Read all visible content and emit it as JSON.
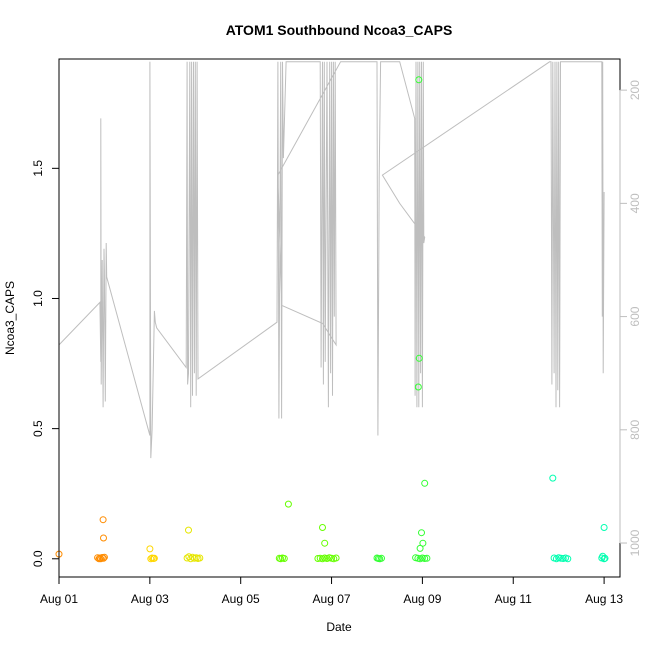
{
  "chart_data": {
    "type": "scatter",
    "title": "ATOM1 Southbound Ncoa3_CAPS",
    "xlabel": "Date",
    "ylabel": "Ncoa3_CAPS",
    "xlim": [
      0.0,
      12.35
    ],
    "ylim": [
      -0.07,
      1.92
    ],
    "x_ticks": [
      {
        "value": 0,
        "label": "Aug 01"
      },
      {
        "value": 2,
        "label": "Aug 03"
      },
      {
        "value": 4,
        "label": "Aug 05"
      },
      {
        "value": 6,
        "label": "Aug 07"
      },
      {
        "value": 8,
        "label": "Aug 09"
      },
      {
        "value": 10,
        "label": "Aug 11"
      },
      {
        "value": 12,
        "label": "Aug 13"
      }
    ],
    "y_ticks": [
      {
        "value": 0.0,
        "label": "0.0"
      },
      {
        "value": 0.5,
        "label": "0.5"
      },
      {
        "value": 1.0,
        "label": "1.0"
      },
      {
        "value": 1.5,
        "label": "1.5"
      }
    ],
    "secondary_axis": {
      "color": "#bebebe",
      "reversed": true,
      "ylim": [
        1060,
        145
      ],
      "ticks": [
        {
          "value": 200,
          "label": "200"
        },
        {
          "value": 400,
          "label": "400"
        },
        {
          "value": 600,
          "label": "600"
        },
        {
          "value": 800,
          "label": "800"
        },
        {
          "value": 1000,
          "label": "1000"
        }
      ]
    },
    "secondary_line": {
      "color": "#bebebe",
      "points": [
        [
          0.0,
          650
        ],
        [
          0.9,
          575
        ],
        [
          0.92,
          680
        ],
        [
          0.92,
          250
        ],
        [
          0.93,
          720
        ],
        [
          0.95,
          500
        ],
        [
          0.97,
          760
        ],
        [
          0.99,
          480
        ],
        [
          1.0,
          520
        ],
        [
          1.02,
          750
        ],
        [
          1.04,
          470
        ],
        [
          1.05,
          530
        ],
        [
          2.0,
          810
        ],
        [
          2.0,
          150
        ],
        [
          2.02,
          850
        ],
        [
          2.05,
          800
        ],
        [
          2.1,
          590
        ],
        [
          2.12,
          610
        ],
        [
          2.15,
          620
        ],
        [
          2.8,
          690
        ],
        [
          2.82,
          150
        ],
        [
          2.83,
          720
        ],
        [
          2.85,
          700
        ],
        [
          2.88,
          150
        ],
        [
          2.9,
          760
        ],
        [
          2.92,
          150
        ],
        [
          2.94,
          740
        ],
        [
          2.96,
          150
        ],
        [
          2.98,
          700
        ],
        [
          3.0,
          150
        ],
        [
          3.02,
          740
        ],
        [
          3.04,
          150
        ],
        [
          3.06,
          710
        ],
        [
          4.8,
          610
        ],
        [
          4.82,
          150
        ],
        [
          4.84,
          780
        ],
        [
          4.86,
          480
        ],
        [
          4.88,
          150
        ],
        [
          4.9,
          780
        ],
        [
          4.92,
          150
        ],
        [
          4.94,
          320
        ],
        [
          5.0,
          150
        ],
        [
          5.6,
          150
        ],
        [
          5.75,
          150
        ],
        [
          5.77,
          690
        ],
        [
          5.8,
          150
        ],
        [
          5.82,
          720
        ],
        [
          5.84,
          150
        ],
        [
          5.86,
          680
        ],
        [
          5.9,
          150
        ],
        [
          5.93,
          760
        ],
        [
          5.96,
          150
        ],
        [
          5.98,
          700
        ],
        [
          6.0,
          150
        ],
        [
          6.02,
          740
        ],
        [
          6.04,
          150
        ],
        [
          6.06,
          600
        ],
        [
          6.08,
          150
        ],
        [
          6.1,
          650
        ],
        [
          5.8,
          612
        ],
        [
          4.9,
          580
        ],
        [
          4.82,
          350
        ],
        [
          6.2,
          150
        ],
        [
          7.0,
          150
        ],
        [
          7.02,
          810
        ],
        [
          7.05,
          350
        ],
        [
          7.08,
          150
        ],
        [
          7.1,
          150
        ],
        [
          7.5,
          150
        ],
        [
          7.83,
          250
        ],
        [
          7.84,
          740
        ],
        [
          7.86,
          150
        ],
        [
          7.88,
          760
        ],
        [
          7.9,
          150
        ],
        [
          7.92,
          760
        ],
        [
          7.94,
          150
        ],
        [
          7.96,
          700
        ],
        [
          7.98,
          150
        ],
        [
          8.0,
          760
        ],
        [
          8.02,
          150
        ],
        [
          8.03,
          470
        ],
        [
          8.05,
          460
        ],
        [
          7.5,
          400
        ],
        [
          7.12,
          350
        ],
        [
          10.8,
          150
        ],
        [
          10.83,
          150
        ],
        [
          10.85,
          720
        ],
        [
          10.87,
          150
        ],
        [
          10.9,
          700
        ],
        [
          10.92,
          150
        ],
        [
          10.94,
          760
        ],
        [
          10.96,
          150
        ],
        [
          10.98,
          730
        ],
        [
          11.0,
          150
        ],
        [
          11.02,
          760
        ],
        [
          11.04,
          150
        ],
        [
          11.05,
          150
        ],
        [
          11.95,
          150
        ],
        [
          11.96,
          600
        ],
        [
          11.97,
          150
        ],
        [
          11.98,
          700
        ],
        [
          12.0,
          380
        ]
      ]
    },
    "series": [
      {
        "color": "#ff8c00",
        "points": [
          [
            0.0,
            0.018
          ],
          [
            0.85,
            0.004
          ],
          [
            0.88,
            0.0
          ],
          [
            0.9,
            0.003
          ],
          [
            0.92,
            0.0
          ],
          [
            0.95,
            0.005
          ],
          [
            0.98,
            0.002
          ],
          [
            1.0,
            0.006
          ],
          [
            0.98,
            0.08
          ],
          [
            0.97,
            0.15
          ]
        ]
      },
      {
        "color": "#ffd700",
        "points": [
          [
            2.0,
            0.038
          ],
          [
            2.02,
            0.0
          ],
          [
            2.05,
            0.003
          ],
          [
            2.08,
            0.001
          ],
          [
            2.1,
            0.002
          ]
        ]
      },
      {
        "color": "#e6e600",
        "points": [
          [
            2.85,
            0.11
          ],
          [
            2.82,
            0.003
          ],
          [
            2.86,
            0.008
          ],
          [
            2.9,
            0.0
          ],
          [
            2.94,
            0.006
          ],
          [
            2.98,
            0.002
          ],
          [
            3.02,
            0.004
          ],
          [
            3.06,
            0.001
          ],
          [
            3.1,
            0.003
          ]
        ]
      },
      {
        "color": "#66ff00",
        "points": [
          [
            5.05,
            0.21
          ],
          [
            4.85,
            0.002
          ],
          [
            4.88,
            0.0
          ],
          [
            4.92,
            0.003
          ],
          [
            4.96,
            0.001
          ],
          [
            5.8,
            0.12
          ],
          [
            5.85,
            0.06
          ],
          [
            5.75,
            0.002
          ],
          [
            5.8,
            0.0
          ],
          [
            5.85,
            0.003
          ],
          [
            5.9,
            0.001
          ],
          [
            5.95,
            0.004
          ],
          [
            6.0,
            0.002
          ],
          [
            6.05,
            0.0
          ],
          [
            6.1,
            0.003
          ],
          [
            5.7,
            0.001
          ]
        ]
      },
      {
        "color": "#33ff33",
        "points": [
          [
            7.0,
            0.003
          ],
          [
            7.03,
            0.001
          ],
          [
            7.06,
            0.0
          ],
          [
            7.1,
            0.002
          ],
          [
            7.92,
            1.84
          ],
          [
            7.93,
            0.77
          ],
          [
            7.91,
            0.66
          ],
          [
            8.05,
            0.29
          ],
          [
            7.98,
            0.1
          ],
          [
            8.01,
            0.06
          ],
          [
            7.95,
            0.04
          ],
          [
            7.9,
            0.002
          ],
          [
            7.95,
            0.0
          ],
          [
            8.0,
            0.003
          ],
          [
            8.05,
            0.001
          ],
          [
            8.1,
            0.002
          ],
          [
            7.85,
            0.004
          ]
        ]
      },
      {
        "color": "#00ffb0",
        "points": [
          [
            10.87,
            0.31
          ],
          [
            10.9,
            0.003
          ],
          [
            10.95,
            0.0
          ],
          [
            11.0,
            0.004
          ],
          [
            11.05,
            0.002
          ],
          [
            11.1,
            0.001
          ],
          [
            11.15,
            0.003
          ],
          [
            11.2,
            0.0
          ],
          [
            12.0,
            0.12
          ],
          [
            11.97,
            0.01
          ],
          [
            11.95,
            0.003
          ],
          [
            12.0,
            0.0
          ],
          [
            12.02,
            0.002
          ]
        ]
      }
    ]
  }
}
